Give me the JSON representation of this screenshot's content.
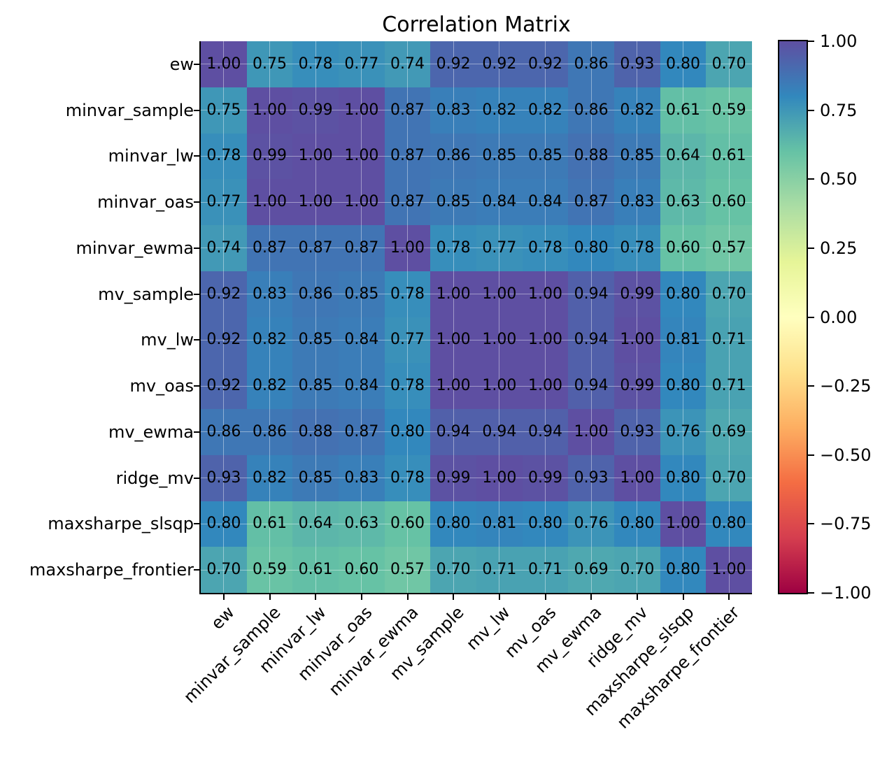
{
  "title": "Correlation Matrix",
  "chart_data": {
    "type": "heatmap",
    "title": "Correlation Matrix",
    "categories": [
      "ew",
      "minvar_sample",
      "minvar_lw",
      "minvar_oas",
      "minvar_ewma",
      "mv_sample",
      "mv_lw",
      "mv_oas",
      "mv_ewma",
      "ridge_mv",
      "maxsharpe_slsqp",
      "maxsharpe_frontier"
    ],
    "matrix": [
      [
        1.0,
        0.75,
        0.78,
        0.77,
        0.74,
        0.92,
        0.92,
        0.92,
        0.86,
        0.93,
        0.8,
        0.7
      ],
      [
        0.75,
        1.0,
        0.99,
        1.0,
        0.87,
        0.83,
        0.82,
        0.82,
        0.86,
        0.82,
        0.61,
        0.59
      ],
      [
        0.78,
        0.99,
        1.0,
        1.0,
        0.87,
        0.86,
        0.85,
        0.85,
        0.88,
        0.85,
        0.64,
        0.61
      ],
      [
        0.77,
        1.0,
        1.0,
        1.0,
        0.87,
        0.85,
        0.84,
        0.84,
        0.87,
        0.83,
        0.63,
        0.6
      ],
      [
        0.74,
        0.87,
        0.87,
        0.87,
        1.0,
        0.78,
        0.77,
        0.78,
        0.8,
        0.78,
        0.6,
        0.57
      ],
      [
        0.92,
        0.83,
        0.86,
        0.85,
        0.78,
        1.0,
        1.0,
        1.0,
        0.94,
        0.99,
        0.8,
        0.7
      ],
      [
        0.92,
        0.82,
        0.85,
        0.84,
        0.77,
        1.0,
        1.0,
        1.0,
        0.94,
        1.0,
        0.81,
        0.71
      ],
      [
        0.92,
        0.82,
        0.85,
        0.84,
        0.78,
        1.0,
        1.0,
        1.0,
        0.94,
        0.99,
        0.8,
        0.71
      ],
      [
        0.86,
        0.86,
        0.88,
        0.87,
        0.8,
        0.94,
        0.94,
        0.94,
        1.0,
        0.93,
        0.76,
        0.69
      ],
      [
        0.93,
        0.82,
        0.85,
        0.83,
        0.78,
        0.99,
        1.0,
        0.99,
        0.93,
        1.0,
        0.8,
        0.7
      ],
      [
        0.8,
        0.61,
        0.64,
        0.63,
        0.6,
        0.8,
        0.81,
        0.8,
        0.76,
        0.8,
        1.0,
        0.8
      ],
      [
        0.7,
        0.59,
        0.61,
        0.6,
        0.57,
        0.7,
        0.71,
        0.71,
        0.69,
        0.7,
        0.8,
        1.0
      ]
    ],
    "value_format_decimals": 2,
    "cell_text_color": "#000000",
    "vmin": -1.0,
    "vmax": 1.0,
    "grid": true,
    "colormap": {
      "name": "Spectral",
      "anchors": [
        "#9e0142",
        "#d53e4f",
        "#f46d43",
        "#fdae61",
        "#fee08b",
        "#ffffbf",
        "#e6f598",
        "#abdda4",
        "#66c2a5",
        "#3288bd",
        "#5e4fa2"
      ]
    },
    "colorbar": {
      "position": "right",
      "ticks": [
        {
          "label": "1.00",
          "value": 1.0
        },
        {
          "label": "0.75",
          "value": 0.75
        },
        {
          "label": "0.50",
          "value": 0.5
        },
        {
          "label": "0.25",
          "value": 0.25
        },
        {
          "label": "0.00",
          "value": 0.0
        },
        {
          "label": "−0.25",
          "value": -0.25
        },
        {
          "label": "−0.50",
          "value": -0.5
        },
        {
          "label": "−0.75",
          "value": -0.75
        },
        {
          "label": "−1.00",
          "value": -1.0
        }
      ]
    }
  }
}
